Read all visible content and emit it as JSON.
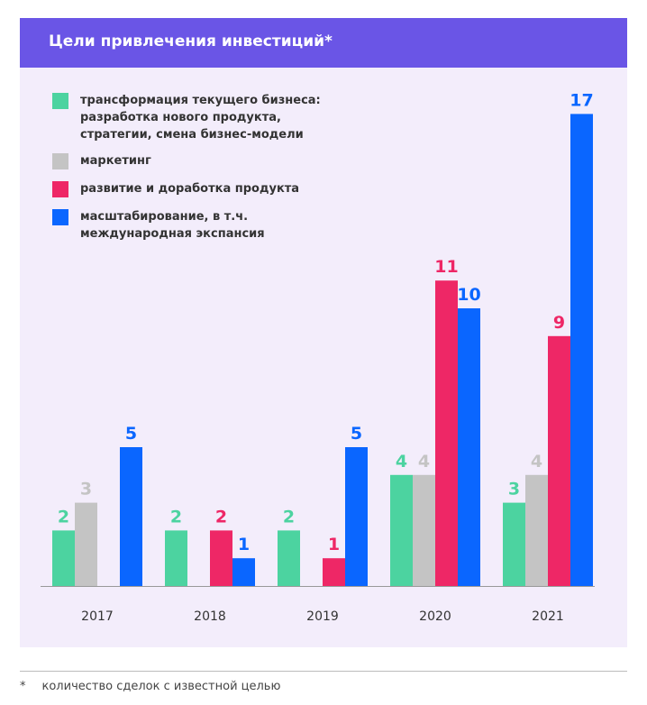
{
  "chart_data": {
    "type": "bar",
    "title": "Цели привлечения инвестиций*",
    "categories": [
      "2017",
      "2018",
      "2019",
      "2020",
      "2021"
    ],
    "series": [
      {
        "name": "трансформация текущего бизнеса: разработка нового продукта, стратегии, смена бизнес-модели",
        "color": "#4cd3a0",
        "values": [
          2,
          2,
          2,
          4,
          3
        ]
      },
      {
        "name": "маркетинг",
        "color": "#c4c4c4",
        "values": [
          3,
          0,
          0,
          4,
          4
        ]
      },
      {
        "name": "развитие и доработка продукта",
        "color": "#ee2766",
        "values": [
          0,
          2,
          1,
          11,
          9
        ]
      },
      {
        "name": "масштабирование, в т.ч. международная экспансия",
        "color": "#0a66ff",
        "values": [
          5,
          1,
          5,
          10,
          17
        ]
      }
    ],
    "legend_position": "top-left",
    "grid": false
  },
  "footnote": {
    "marker": "*",
    "text": "количество сделок с известной целью"
  }
}
